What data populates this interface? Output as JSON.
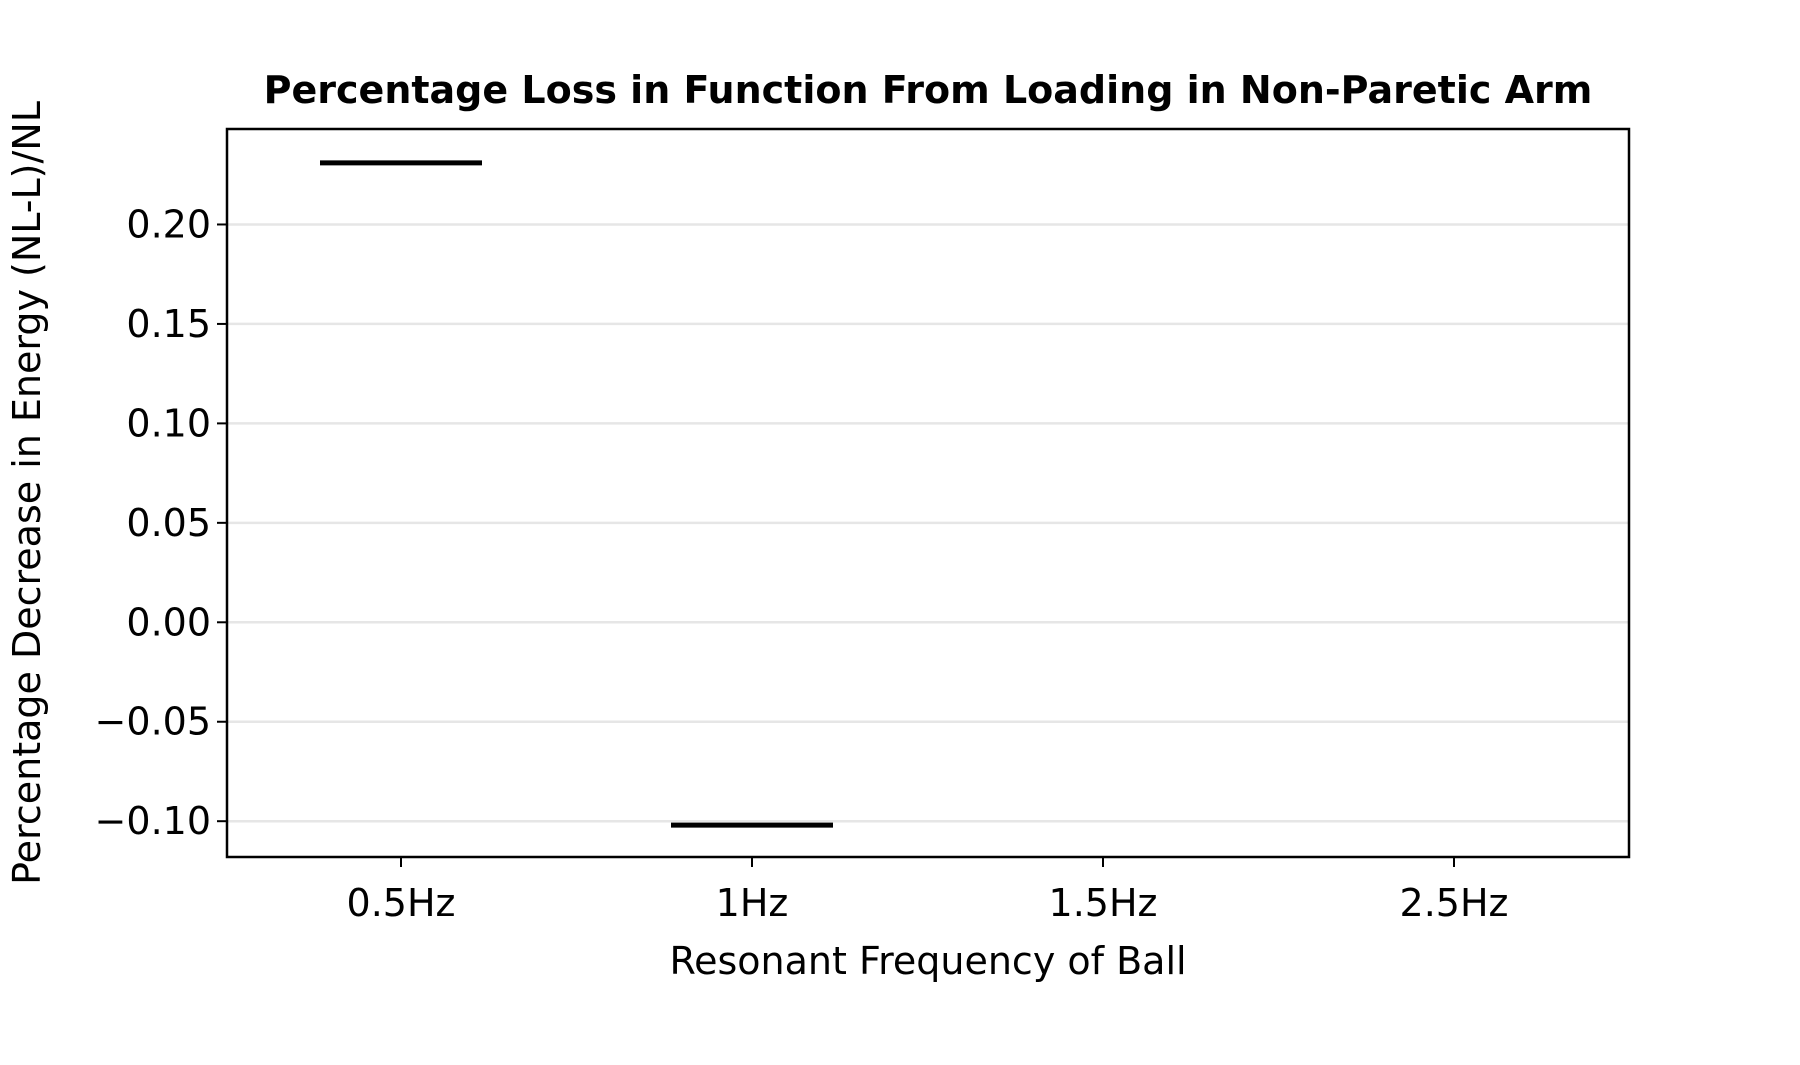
{
  "chart_data": {
    "type": "bar",
    "title": "Percentage Loss in Function From Loading in Non-Paretic Arm",
    "xlabel": "Resonant Frequency of Ball",
    "ylabel": "Percentage Decrease in Energy (NL-L)/NL",
    "categories": [
      "0.5Hz",
      "1Hz",
      "1.5Hz",
      "2.5Hz"
    ],
    "values": [
      0.231,
      -0.102,
      null,
      null
    ],
    "ylim": [
      -0.118,
      0.248
    ],
    "yticks": [
      0.2,
      0.15,
      0.1,
      0.05,
      0.0,
      -0.05,
      -0.1
    ],
    "ytick_labels": [
      "0.20",
      "0.15",
      "0.10",
      "0.05",
      "0.00",
      "−0.05",
      "−0.10"
    ],
    "grid": "horizontal",
    "colors": {
      "mark": "#000000",
      "grid": "#e6e6e6",
      "axes": "#000000"
    }
  }
}
